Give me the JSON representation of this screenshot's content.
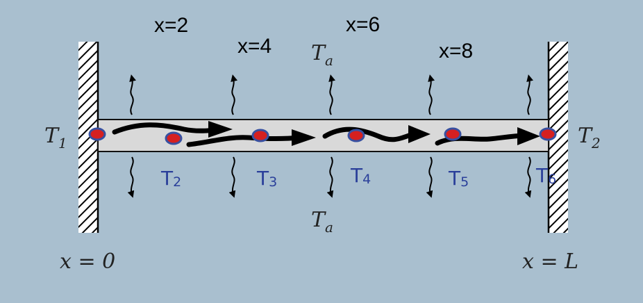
{
  "title_labels": {
    "x2": "x=2",
    "x4": "x=4",
    "x6": "x=6",
    "x8": "x=8"
  },
  "ambient": {
    "top_main": "T",
    "top_sub": "a",
    "bottom_main": "T",
    "bottom_sub": "a"
  },
  "ends": {
    "left_main": "T",
    "left_sub": "1",
    "right_main": "T",
    "right_sub": "2",
    "left_pos": "x = 0",
    "right_pos": "x = L"
  },
  "nodes_handwritten": [
    {
      "main": "T",
      "sub": "2"
    },
    {
      "main": "T",
      "sub": "3"
    },
    {
      "main": "T",
      "sub": "4"
    },
    {
      "main": "T",
      "sub": "5"
    },
    {
      "main": "T",
      "sub": "6"
    }
  ],
  "colors": {
    "background": "#a9bfcf",
    "rod_fill": "#d9d9d9",
    "node_fill": "#d62020",
    "node_ring": "#3850a0",
    "handwriting": "#2a3f9a"
  }
}
